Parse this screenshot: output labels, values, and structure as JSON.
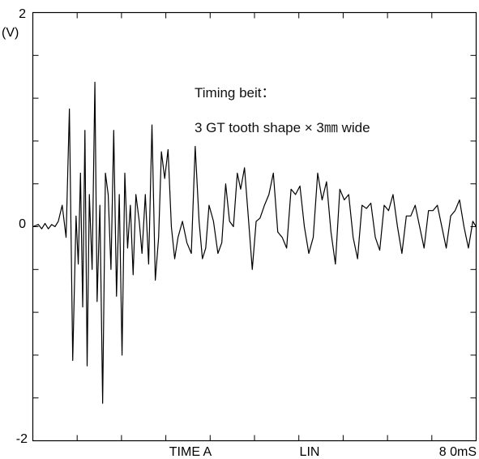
{
  "chart_data": {
    "type": "line",
    "title": "",
    "ylabel": "(V)",
    "xlabel": "",
    "ylim": [
      -2,
      2
    ],
    "xlim": [
      0,
      80
    ],
    "y_tick_labels": [
      "2",
      "0",
      "-2"
    ],
    "x_tick_labels": [
      "TIME A",
      "LIN",
      "8 0mS"
    ],
    "grid": false,
    "annotations": [
      "Timing beit：",
      "3 GT tooth shape × 3㎜ wide"
    ],
    "series": [
      {
        "x": [
          0.0,
          1.0,
          1.6,
          2.2,
          2.8,
          3.4,
          4.0,
          4.6,
          5.3,
          6.0,
          6.6,
          7.2,
          7.8,
          8.2,
          8.6,
          9.0,
          9.4,
          9.8,
          10.2,
          10.7,
          11.2,
          11.6,
          12.1,
          12.6,
          13.1,
          13.6,
          14.1,
          14.6,
          15.1,
          15.6,
          16.1,
          16.6,
          17.1,
          17.6,
          18.1,
          18.6,
          19.2,
          19.7,
          20.3,
          20.9,
          21.5,
          22.1,
          22.7,
          23.2,
          23.8,
          24.4,
          25.0,
          25.6,
          26.2,
          27.0,
          27.8,
          28.6,
          29.3,
          30.0,
          30.6,
          31.2,
          31.8,
          32.6,
          33.4,
          34.1,
          34.8,
          35.5,
          36.2,
          36.9,
          37.5,
          38.2,
          38.9,
          39.6,
          40.3,
          41.0,
          41.8,
          42.6,
          43.4,
          44.2,
          45.0,
          45.8,
          46.6,
          47.4,
          48.2,
          49.0,
          49.8,
          50.6,
          51.4,
          52.2,
          53.0,
          53.8,
          54.6,
          55.4,
          56.2,
          57.0,
          57.8,
          58.6,
          59.4,
          60.2,
          61.0,
          61.8,
          62.6,
          63.4,
          64.2,
          65.0,
          65.8,
          66.6,
          67.4,
          68.2,
          69.0,
          69.8,
          70.6,
          71.4,
          72.2,
          73.0,
          73.8,
          74.6,
          75.4,
          76.2,
          77.0,
          77.8,
          78.6,
          79.4,
          80.0
        ],
        "y": [
          0.0,
          0.02,
          -0.02,
          0.03,
          -0.02,
          0.02,
          0.0,
          0.05,
          0.2,
          -0.1,
          1.1,
          -1.25,
          0.1,
          -0.35,
          0.5,
          -0.75,
          0.9,
          -1.3,
          0.3,
          -0.4,
          1.35,
          -0.7,
          0.2,
          -1.65,
          0.5,
          0.3,
          -0.4,
          0.9,
          -0.65,
          0.3,
          -1.2,
          0.5,
          -0.2,
          0.2,
          -0.45,
          0.3,
          0.05,
          -0.25,
          0.3,
          -0.35,
          0.95,
          -0.5,
          -0.1,
          0.7,
          0.45,
          0.72,
          0.0,
          -0.3,
          -0.1,
          0.05,
          -0.15,
          -0.25,
          0.75,
          0.05,
          -0.3,
          -0.2,
          0.2,
          0.05,
          -0.25,
          -0.15,
          0.4,
          0.05,
          0.0,
          0.5,
          0.35,
          0.55,
          0.08,
          -0.4,
          0.05,
          0.08,
          0.2,
          0.3,
          0.5,
          -0.05,
          -0.1,
          -0.2,
          0.35,
          0.3,
          0.38,
          0.0,
          -0.25,
          -0.1,
          0.5,
          0.25,
          0.42,
          -0.05,
          -0.35,
          0.35,
          0.25,
          0.3,
          -0.1,
          -0.3,
          0.2,
          0.17,
          0.22,
          -0.1,
          -0.22,
          0.2,
          0.15,
          0.3,
          0.0,
          -0.25,
          0.1,
          0.1,
          0.2,
          0.0,
          -0.2,
          0.15,
          0.15,
          0.2,
          0.0,
          -0.2,
          0.1,
          0.15,
          0.25,
          0.0,
          -0.2,
          0.05,
          0.0
        ]
      }
    ]
  }
}
